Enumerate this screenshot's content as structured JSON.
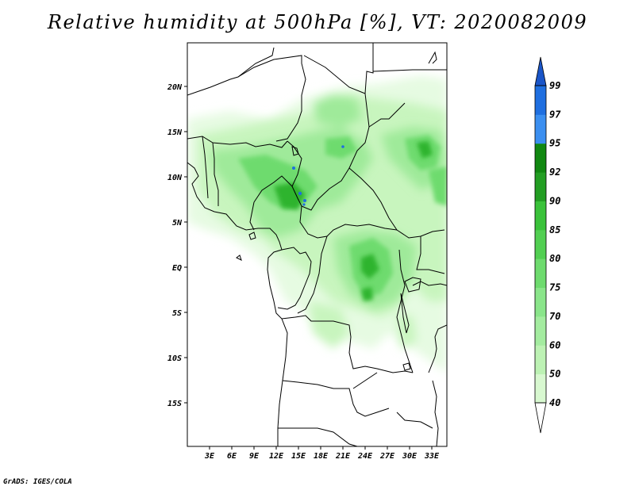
{
  "title": "Relative humidity at 500hPa [%], VT: 2020082009",
  "credit": "GrADS: IGES/COLA",
  "lat_ticks": [
    "20N",
    "15N",
    "10N",
    "5N",
    "EQ",
    "5S",
    "10S",
    "15S"
  ],
  "lon_ticks": [
    "3E",
    "6E",
    "9E",
    "12E",
    "15E",
    "18E",
    "21E",
    "24E",
    "27E",
    "30E",
    "33E"
  ],
  "colorbar": {
    "labels": [
      "40",
      "50",
      "60",
      "70",
      "75",
      "80",
      "85",
      "90",
      "92",
      "95",
      "97",
      "99"
    ],
    "colors": [
      "#f0fff0",
      "#d8f8d0",
      "#bdf2b4",
      "#a4eca0",
      "#8ae58a",
      "#6edb6e",
      "#52cf52",
      "#3ac23a",
      "#239e23",
      "#118811",
      "#3b8ff0",
      "#1f6fe0",
      "#1a55c8"
    ]
  },
  "regions": {
    "west_africa_band": "light green",
    "nigeria_cameroon": "green",
    "congo_basin": "green",
    "sudan_east": "light green"
  }
}
